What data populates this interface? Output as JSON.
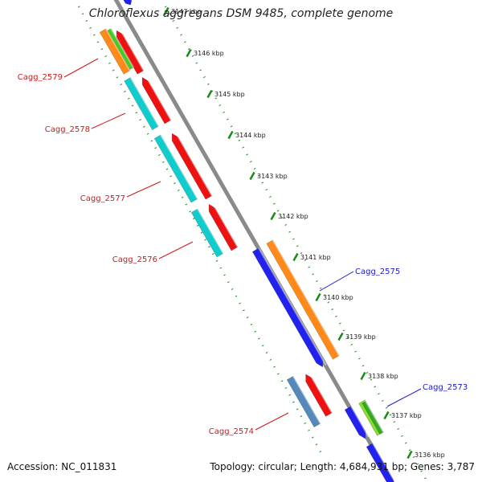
{
  "title": "Chloroflexus aggregans DSM 9485, complete genome",
  "footer": {
    "accession": "Accession: NC_011831",
    "summary": "Topology: circular; Length: 4,684,931 bp; Genes: 3,787"
  },
  "colors": {
    "backbone": "#8a8a8a",
    "tick": "#1a8a1a",
    "label_forward": "#1a1acc",
    "label_reverse": "#cc1a1a"
  },
  "ticks": [
    "3147 kbp",
    "3146 kbp",
    "3145 kbp",
    "3144 kbp",
    "3143 kbp",
    "3142 kbp",
    "3141 kbp",
    "3140 kbp",
    "3139 kbp",
    "3138 kbp",
    "3137 kbp",
    "3136 kbp"
  ],
  "labeled_genes": [
    {
      "name": "Cagg_2579",
      "strand": "reverse"
    },
    {
      "name": "Cagg_2578",
      "strand": "reverse"
    },
    {
      "name": "Cagg_2577",
      "strand": "reverse"
    },
    {
      "name": "Cagg_2576",
      "strand": "reverse"
    },
    {
      "name": "Cagg_2575",
      "strand": "forward"
    },
    {
      "name": "Cagg_2574",
      "strand": "reverse"
    },
    {
      "name": "Cagg_2573",
      "strand": "forward"
    }
  ]
}
